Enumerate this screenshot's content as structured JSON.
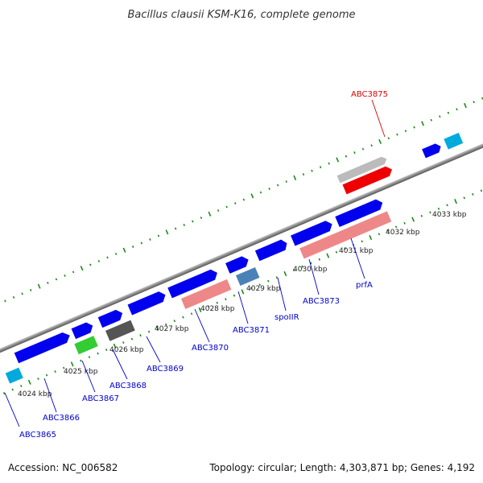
{
  "map": {
    "title": "Bacillus clausii KSM-K16, complete genome",
    "accession_label": "Accession: NC_006582",
    "summary_label": "Topology: circular; Length: 4,303,871 bp; Genes: 4,192"
  },
  "colors": {
    "backbone": "#8a8a8a",
    "tick": "#1a8a1a",
    "label_blue": "#0000cc",
    "label_red": "#dd0000",
    "gene_blue": "#0000ee",
    "gene_red": "#ee0000",
    "gene_pink": "#ee8888",
    "gene_gray": "#bbbbbb",
    "gene_dark": "#555555",
    "gene_green": "#33cc33",
    "gene_cyan": "#00aadd",
    "gene_steel": "#4a82b8"
  },
  "ruler": {
    "unit": "kbp",
    "labels": [
      "4024 kbp",
      "4025 kbp",
      "4026 kbp",
      "4027 kbp",
      "4028 kbp",
      "4029 kbp",
      "4030 kbp",
      "4031 kbp",
      "4032 kbp",
      "4033 kbp"
    ]
  },
  "gene_labels": [
    {
      "text": "ABC3865",
      "color": "blue"
    },
    {
      "text": "ABC3866",
      "color": "blue"
    },
    {
      "text": "ABC3867",
      "color": "blue"
    },
    {
      "text": "ABC3868",
      "color": "blue"
    },
    {
      "text": "ABC3869",
      "color": "blue"
    },
    {
      "text": "ABC3870",
      "color": "blue"
    },
    {
      "text": "ABC3871",
      "color": "blue"
    },
    {
      "text": "spoIIR",
      "color": "blue"
    },
    {
      "text": "ABC3873",
      "color": "blue"
    },
    {
      "text": "prfA",
      "color": "blue"
    },
    {
      "text": "ABC3875",
      "color": "red"
    }
  ]
}
